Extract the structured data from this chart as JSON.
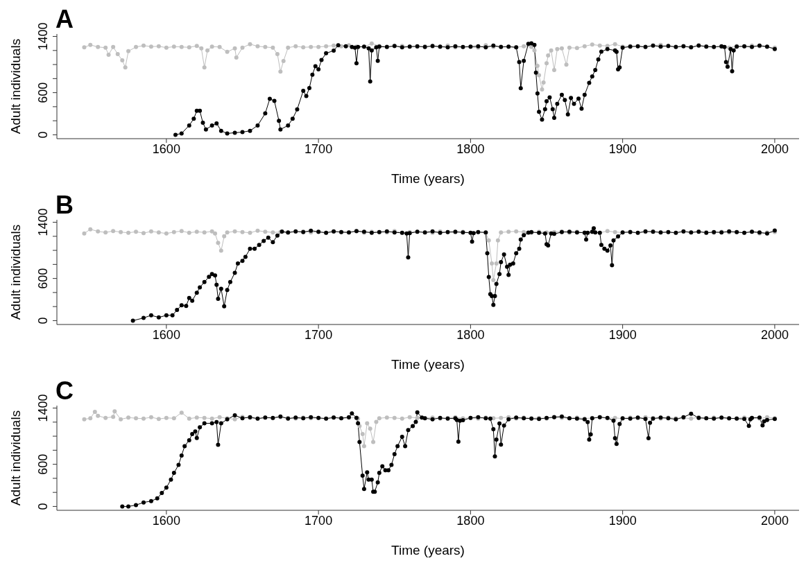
{
  "chart_data": [
    {
      "type": "line",
      "title": "A",
      "xlabel": "Time (years)",
      "ylabel": "Adult individuals",
      "xlim": [
        1528,
        2016
      ],
      "ylim": [
        -55,
        1435
      ],
      "xticks": [
        1600,
        1700,
        1800,
        1900,
        2000
      ],
      "yticks": [
        0,
        {
          "value": 200,
          "label": null
        },
        {
          "value": 400,
          "label": null
        },
        600,
        {
          "value": 800,
          "label": null
        },
        {
          "value": 1000,
          "label": null
        },
        {
          "value": 1200,
          "label": null
        },
        1400
      ],
      "marker": "circle",
      "line_style": "solid",
      "series": [
        {
          "color": "#bebebe",
          "x": [
            1546,
            1550,
            1555,
            1560,
            1562,
            1565,
            1568,
            1571,
            1573,
            1575,
            1580,
            1585,
            1590,
            1595,
            1600,
            1605,
            1610,
            1615,
            1620,
            1623,
            1625,
            1627,
            1630,
            1635,
            1640,
            1645,
            1646,
            1650,
            1655,
            1660,
            1665,
            1670,
            1673,
            1675,
            1677,
            1680,
            1685,
            1690,
            1695,
            1700,
            1705,
            1710,
            1715,
            1720,
            1725,
            1730,
            1735,
            1740,
            1745,
            1750,
            1755,
            1760,
            1765,
            1770,
            1775,
            1780,
            1785,
            1790,
            1795,
            1800,
            1805,
            1810,
            1815,
            1820,
            1825,
            1830,
            1835,
            1840,
            1842,
            1844,
            1845,
            1847,
            1848,
            1850,
            1851,
            1853,
            1855,
            1857,
            1860,
            1863,
            1865,
            1870,
            1875,
            1880,
            1885,
            1890,
            1895,
            1900,
            1905,
            1910,
            1915,
            1920,
            1925,
            1930,
            1935,
            1940,
            1945,
            1950,
            1955,
            1960,
            1965,
            1970,
            1975,
            1980,
            1985,
            1990,
            1995,
            2000
          ],
          "values": [
            1245,
            1280,
            1250,
            1240,
            1140,
            1250,
            1150,
            1060,
            960,
            1190,
            1250,
            1270,
            1255,
            1260,
            1240,
            1255,
            1250,
            1245,
            1265,
            1230,
            960,
            1200,
            1255,
            1250,
            1180,
            1230,
            1100,
            1240,
            1290,
            1260,
            1250,
            1240,
            1150,
            900,
            1050,
            1240,
            1260,
            1245,
            1250,
            1250,
            1260,
            1270,
            1260,
            1275,
            1255,
            1250,
            1300,
            1265,
            1255,
            1260,
            1265,
            1255,
            1250,
            1260,
            1255,
            1250,
            1270,
            1245,
            1250,
            1250,
            1240,
            1275,
            1250,
            1255,
            1250,
            1245,
            1260,
            1250,
            1200,
            980,
            848,
            645,
            745,
            1017,
            1128,
            1200,
            923,
            1220,
            1230,
            998,
            1240,
            1235,
            1260,
            1285,
            1270,
            1265,
            1290,
            1255,
            1265,
            1260,
            1255,
            1270,
            1280,
            1260,
            1255,
            1265,
            1250,
            1275,
            1260,
            1255,
            1250,
            1240,
            1265,
            1255,
            1270,
            1260,
            1250,
            1240
          ]
        },
        {
          "color": "#000000",
          "x": [
            1606,
            1610,
            1615,
            1618,
            1620,
            1622,
            1624,
            1626,
            1630,
            1633,
            1636,
            1640,
            1645,
            1650,
            1655,
            1660,
            1665,
            1668,
            1671,
            1674,
            1675,
            1680,
            1683,
            1686,
            1690,
            1692,
            1694,
            1696,
            1698,
            1700,
            1702,
            1705,
            1710,
            1713,
            1718,
            1722,
            1724,
            1725,
            1726,
            1730,
            1733,
            1734,
            1735,
            1738,
            1739,
            1740,
            1745,
            1750,
            1755,
            1760,
            1765,
            1770,
            1775,
            1780,
            1785,
            1790,
            1795,
            1800,
            1805,
            1810,
            1815,
            1820,
            1825,
            1830,
            1832,
            1833,
            1835,
            1838,
            1840,
            1842,
            1843,
            1844,
            1845,
            1847,
            1849,
            1850,
            1852,
            1854,
            1855,
            1857,
            1860,
            1862,
            1864,
            1866,
            1868,
            1871,
            1873,
            1875,
            1878,
            1880,
            1882,
            1884,
            1886,
            1890,
            1895,
            1896,
            1897,
            1898,
            1900,
            1905,
            1910,
            1915,
            1920,
            1925,
            1930,
            1935,
            1940,
            1945,
            1950,
            1955,
            1960,
            1965,
            1967,
            1968,
            1969,
            1971,
            1972,
            1973,
            1975,
            1980,
            1985,
            1990,
            1995,
            2000
          ],
          "values": [
            0,
            20,
            133,
            228,
            342,
            342,
            171,
            76,
            133,
            163,
            57,
            19,
            30,
            38,
            57,
            133,
            304,
            513,
            483,
            200,
            76,
            133,
            228,
            361,
            627,
            551,
            665,
            855,
            977,
            931,
            1065,
            1160,
            1198,
            1274,
            1260,
            1250,
            1240,
            1019,
            1250,
            1255,
            1230,
            760,
            1200,
            1245,
            1053,
            1255,
            1250,
            1265,
            1245,
            1255,
            1260,
            1250,
            1265,
            1255,
            1245,
            1260,
            1250,
            1255,
            1260,
            1245,
            1270,
            1250,
            1255,
            1245,
            1035,
            663,
            1053,
            1295,
            1303,
            1280,
            886,
            588,
            328,
            216,
            365,
            477,
            532,
            365,
            242,
            440,
            570,
            495,
            290,
            525,
            440,
            515,
            373,
            570,
            740,
            830,
            923,
            1072,
            1184,
            1220,
            1200,
            1180,
            931,
            960,
            1240,
            1255,
            1260,
            1250,
            1270,
            1255,
            1265,
            1250,
            1260,
            1245,
            1270,
            1255,
            1250,
            1260,
            1250,
            1035,
            968,
            1220,
            905,
            1200,
            1255,
            1260,
            1250,
            1270,
            1255,
            1220
          ]
        }
      ]
    },
    {
      "type": "line",
      "title": "B",
      "xlabel": "Time (years)",
      "ylabel": "Adult individuals",
      "xlim": [
        1528,
        2016
      ],
      "ylim": [
        -55,
        1435
      ],
      "xticks": [
        1600,
        1700,
        1800,
        1900,
        2000
      ],
      "yticks": [
        0,
        {
          "value": 200,
          "label": null
        },
        {
          "value": 400,
          "label": null
        },
        600,
        {
          "value": 800,
          "label": null
        },
        {
          "value": 1000,
          "label": null
        },
        {
          "value": 1200,
          "label": null
        },
        1400
      ],
      "marker": "circle",
      "line_style": "solid",
      "series": [
        {
          "color": "#bebebe",
          "x": [
            1546,
            1550,
            1555,
            1560,
            1565,
            1570,
            1575,
            1580,
            1585,
            1590,
            1595,
            1600,
            1605,
            1610,
            1615,
            1620,
            1625,
            1630,
            1632,
            1634,
            1636,
            1638,
            1640,
            1645,
            1650,
            1655,
            1660,
            1665,
            1670,
            1675,
            1680,
            1685,
            1690,
            1695,
            1700,
            1705,
            1710,
            1715,
            1720,
            1725,
            1730,
            1735,
            1740,
            1745,
            1750,
            1755,
            1760,
            1765,
            1770,
            1775,
            1780,
            1785,
            1790,
            1795,
            1800,
            1805,
            1810,
            1812,
            1814,
            1815,
            1817,
            1818,
            1820,
            1825,
            1830,
            1835,
            1840,
            1845,
            1850,
            1855,
            1860,
            1865,
            1870,
            1875,
            1880,
            1885,
            1890,
            1895,
            1900,
            1905,
            1910,
            1915,
            1920,
            1925,
            1930,
            1935,
            1940,
            1945,
            1950,
            1955,
            1960,
            1965,
            1970,
            1975,
            1980,
            1985,
            1990,
            1995,
            2000
          ],
          "values": [
            1240,
            1300,
            1270,
            1255,
            1275,
            1260,
            1250,
            1265,
            1245,
            1270,
            1255,
            1240,
            1260,
            1275,
            1250,
            1265,
            1255,
            1270,
            1240,
            1108,
            995,
            1200,
            1255,
            1270,
            1260,
            1250,
            1280,
            1265,
            1255,
            1260,
            1250,
            1265,
            1270,
            1255,
            1260,
            1250,
            1265,
            1260,
            1255,
            1270,
            1250,
            1265,
            1260,
            1255,
            1275,
            1250,
            1260,
            1265,
            1255,
            1250,
            1270,
            1260,
            1255,
            1265,
            1250,
            1260,
            1250,
            1142,
            814,
            577,
            814,
            1142,
            1255,
            1265,
            1270,
            1260,
            1250,
            1265,
            1255,
            1260,
            1270,
            1250,
            1265,
            1255,
            1260,
            1250,
            1275,
            1260,
            1255,
            1265,
            1250,
            1260,
            1270,
            1255,
            1260,
            1250,
            1265,
            1255,
            1270,
            1260,
            1250,
            1265,
            1255,
            1260,
            1250,
            1265,
            1240,
            1255,
            1260
          ]
        },
        {
          "color": "#000000",
          "x": [
            1578,
            1585,
            1590,
            1595,
            1600,
            1604,
            1607,
            1610,
            1613,
            1615,
            1617,
            1620,
            1622,
            1625,
            1628,
            1630,
            1632,
            1633,
            1634,
            1636,
            1638,
            1640,
            1642,
            1645,
            1647,
            1650,
            1652,
            1655,
            1658,
            1661,
            1664,
            1667,
            1670,
            1673,
            1676,
            1680,
            1685,
            1690,
            1695,
            1700,
            1705,
            1710,
            1715,
            1720,
            1725,
            1730,
            1735,
            1740,
            1745,
            1750,
            1755,
            1758,
            1759,
            1760,
            1765,
            1770,
            1775,
            1780,
            1785,
            1790,
            1795,
            1800,
            1801,
            1802,
            1805,
            1810,
            1811,
            1812,
            1813,
            1814,
            1815,
            1816,
            1817,
            1819,
            1820,
            1822,
            1824,
            1825,
            1826,
            1828,
            1830,
            1832,
            1833,
            1835,
            1838,
            1840,
            1845,
            1849,
            1850,
            1851,
            1853,
            1855,
            1860,
            1865,
            1870,
            1875,
            1876,
            1877,
            1880,
            1881,
            1882,
            1885,
            1886,
            1888,
            1890,
            1892,
            1893,
            1894,
            1897,
            1900,
            1905,
            1910,
            1915,
            1920,
            1925,
            1930,
            1935,
            1940,
            1945,
            1950,
            1955,
            1960,
            1965,
            1970,
            1975,
            1980,
            1985,
            1990,
            1995,
            2000
          ],
          "values": [
            0,
            38,
            76,
            45,
            76,
            76,
            151,
            219,
            208,
            322,
            284,
            397,
            473,
            549,
            624,
            662,
            643,
            511,
            310,
            454,
            204,
            435,
            549,
            681,
            813,
            851,
            908,
            1022,
            1022,
            1078,
            1135,
            1180,
            1116,
            1211,
            1267,
            1255,
            1270,
            1260,
            1280,
            1265,
            1250,
            1270,
            1260,
            1255,
            1275,
            1265,
            1250,
            1260,
            1270,
            1255,
            1250,
            1240,
            900,
            1245,
            1265,
            1255,
            1270,
            1250,
            1260,
            1265,
            1255,
            1250,
            1124,
            1245,
            1260,
            1255,
            960,
            620,
            376,
            350,
            223,
            350,
            522,
            664,
            832,
            942,
            766,
            650,
            796,
            814,
            960,
            1022,
            1153,
            1215,
            1252,
            1260,
            1250,
            1240,
            1088,
            1069,
            1240,
            1234,
            1260,
            1265,
            1255,
            1250,
            1153,
            1250,
            1265,
            1314,
            1255,
            1250,
            1077,
            1022,
            996,
            1069,
            788,
            1142,
            1197,
            1255,
            1260,
            1250,
            1270,
            1265,
            1255,
            1260,
            1250,
            1270,
            1255,
            1265,
            1250,
            1260,
            1255,
            1270,
            1260,
            1250,
            1265,
            1255,
            1240,
            1281
          ]
        }
      ]
    },
    {
      "type": "line",
      "title": "C",
      "xlabel": "Time (years)",
      "ylabel": "Adult individuals",
      "xlim": [
        1528,
        2016
      ],
      "ylim": [
        -55,
        1435
      ],
      "xticks": [
        1600,
        1700,
        1800,
        1900,
        2000
      ],
      "yticks": [
        0,
        {
          "value": 200,
          "label": null
        },
        {
          "value": 400,
          "label": null
        },
        600,
        {
          "value": 800,
          "label": null
        },
        {
          "value": 1000,
          "label": null
        },
        {
          "value": 1200,
          "label": null
        },
        1400
      ],
      "marker": "circle",
      "line_style": "solid",
      "series": [
        {
          "color": "#bebebe",
          "x": [
            1546,
            1550,
            1553,
            1555,
            1560,
            1565,
            1566,
            1570,
            1575,
            1580,
            1585,
            1590,
            1595,
            1600,
            1605,
            1610,
            1615,
            1620,
            1625,
            1630,
            1635,
            1640,
            1645,
            1650,
            1655,
            1660,
            1665,
            1670,
            1675,
            1680,
            1685,
            1690,
            1695,
            1700,
            1705,
            1710,
            1715,
            1720,
            1725,
            1726,
            1727,
            1729,
            1730,
            1732,
            1734,
            1736,
            1738,
            1740,
            1745,
            1750,
            1755,
            1760,
            1765,
            1770,
            1775,
            1780,
            1785,
            1790,
            1795,
            1800,
            1805,
            1810,
            1815,
            1820,
            1825,
            1830,
            1835,
            1840,
            1845,
            1850,
            1855,
            1860,
            1865,
            1870,
            1875,
            1880,
            1885,
            1890,
            1895,
            1900,
            1905,
            1910,
            1915,
            1920,
            1925,
            1930,
            1935,
            1940,
            1945,
            1950,
            1955,
            1960,
            1965,
            1970,
            1975,
            1980,
            1985,
            1990,
            1995,
            2000
          ],
          "values": [
            1240,
            1255,
            1347,
            1290,
            1260,
            1275,
            1354,
            1240,
            1265,
            1255,
            1250,
            1270,
            1245,
            1260,
            1255,
            1335,
            1250,
            1265,
            1260,
            1250,
            1270,
            1255,
            1240,
            1275,
            1260,
            1250,
            1265,
            1255,
            1270,
            1260,
            1250,
            1265,
            1255,
            1260,
            1250,
            1270,
            1255,
            1260,
            1265,
            1250,
            1145,
            1030,
            858,
            1183,
            1106,
            916,
            1202,
            1255,
            1265,
            1260,
            1250,
            1270,
            1260,
            1255,
            1265,
            1250,
            1260,
            1270,
            1255,
            1260,
            1250,
            1265,
            1255,
            1260,
            1270,
            1250,
            1265,
            1255,
            1260,
            1250,
            1275,
            1260,
            1255,
            1265,
            1250,
            1260,
            1270,
            1255,
            1260,
            1250,
            1265,
            1255,
            1270,
            1260,
            1250,
            1265,
            1255,
            1260,
            1250,
            1270,
            1255,
            1265,
            1260,
            1250,
            1255,
            1265,
            1260,
            1250,
            1270,
            1255
          ]
        },
        {
          "color": "#000000",
          "x": [
            1571,
            1575,
            1580,
            1585,
            1590,
            1594,
            1597,
            1600,
            1603,
            1605,
            1608,
            1610,
            1612,
            1615,
            1617,
            1619,
            1620,
            1622,
            1625,
            1630,
            1633,
            1634,
            1636,
            1640,
            1645,
            1650,
            1655,
            1660,
            1665,
            1670,
            1675,
            1680,
            1685,
            1690,
            1695,
            1700,
            1705,
            1710,
            1715,
            1720,
            1722,
            1725,
            1726,
            1727,
            1729,
            1730,
            1732,
            1733,
            1735,
            1736,
            1737,
            1739,
            1740,
            1742,
            1744,
            1746,
            1748,
            1750,
            1752,
            1755,
            1757,
            1759,
            1762,
            1764,
            1765,
            1768,
            1770,
            1775,
            1780,
            1785,
            1790,
            1791,
            1792,
            1793,
            1795,
            1800,
            1805,
            1810,
            1813,
            1815,
            1816,
            1817,
            1819,
            1820,
            1822,
            1825,
            1830,
            1835,
            1840,
            1845,
            1850,
            1855,
            1860,
            1865,
            1870,
            1875,
            1877,
            1878,
            1879,
            1880,
            1885,
            1890,
            1894,
            1895,
            1896,
            1898,
            1900,
            1905,
            1910,
            1915,
            1917,
            1918,
            1920,
            1925,
            1930,
            1935,
            1940,
            1945,
            1950,
            1955,
            1960,
            1965,
            1970,
            1975,
            1980,
            1983,
            1984,
            1985,
            1990,
            1992,
            1993,
            1995,
            2000
          ],
          "values": [
            0,
            0,
            19,
            57,
            76,
            114,
            191,
            267,
            382,
            477,
            591,
            725,
            858,
            942,
            1030,
            1068,
            973,
            1126,
            1183,
            1183,
            1200,
            877,
            1183,
            1240,
            1297,
            1255,
            1270,
            1250,
            1265,
            1260,
            1280,
            1250,
            1265,
            1255,
            1270,
            1260,
            1250,
            1265,
            1255,
            1270,
            1324,
            1260,
            1183,
            916,
            439,
            248,
            485,
            382,
            382,
            210,
            210,
            343,
            477,
            572,
            515,
            515,
            591,
            744,
            858,
            992,
            858,
            1087,
            1145,
            1202,
            1338,
            1265,
            1255,
            1240,
            1260,
            1250,
            1255,
            1230,
            923,
            1220,
            1228,
            1260,
            1270,
            1255,
            1250,
            1099,
            713,
            952,
            1180,
            879,
            1151,
            1240,
            1265,
            1255,
            1250,
            1245,
            1260,
            1270,
            1280,
            1255,
            1250,
            1240,
            1200,
            952,
            1025,
            1255,
            1270,
            1260,
            1220,
            970,
            890,
            1173,
            1255,
            1250,
            1265,
            1245,
            970,
            1191,
            1250,
            1265,
            1255,
            1240,
            1270,
            1320,
            1260,
            1255,
            1250,
            1265,
            1255,
            1250,
            1245,
            1147,
            1240,
            1260,
            1265,
            1154,
            1210,
            1230,
            1246
          ]
        }
      ]
    }
  ]
}
